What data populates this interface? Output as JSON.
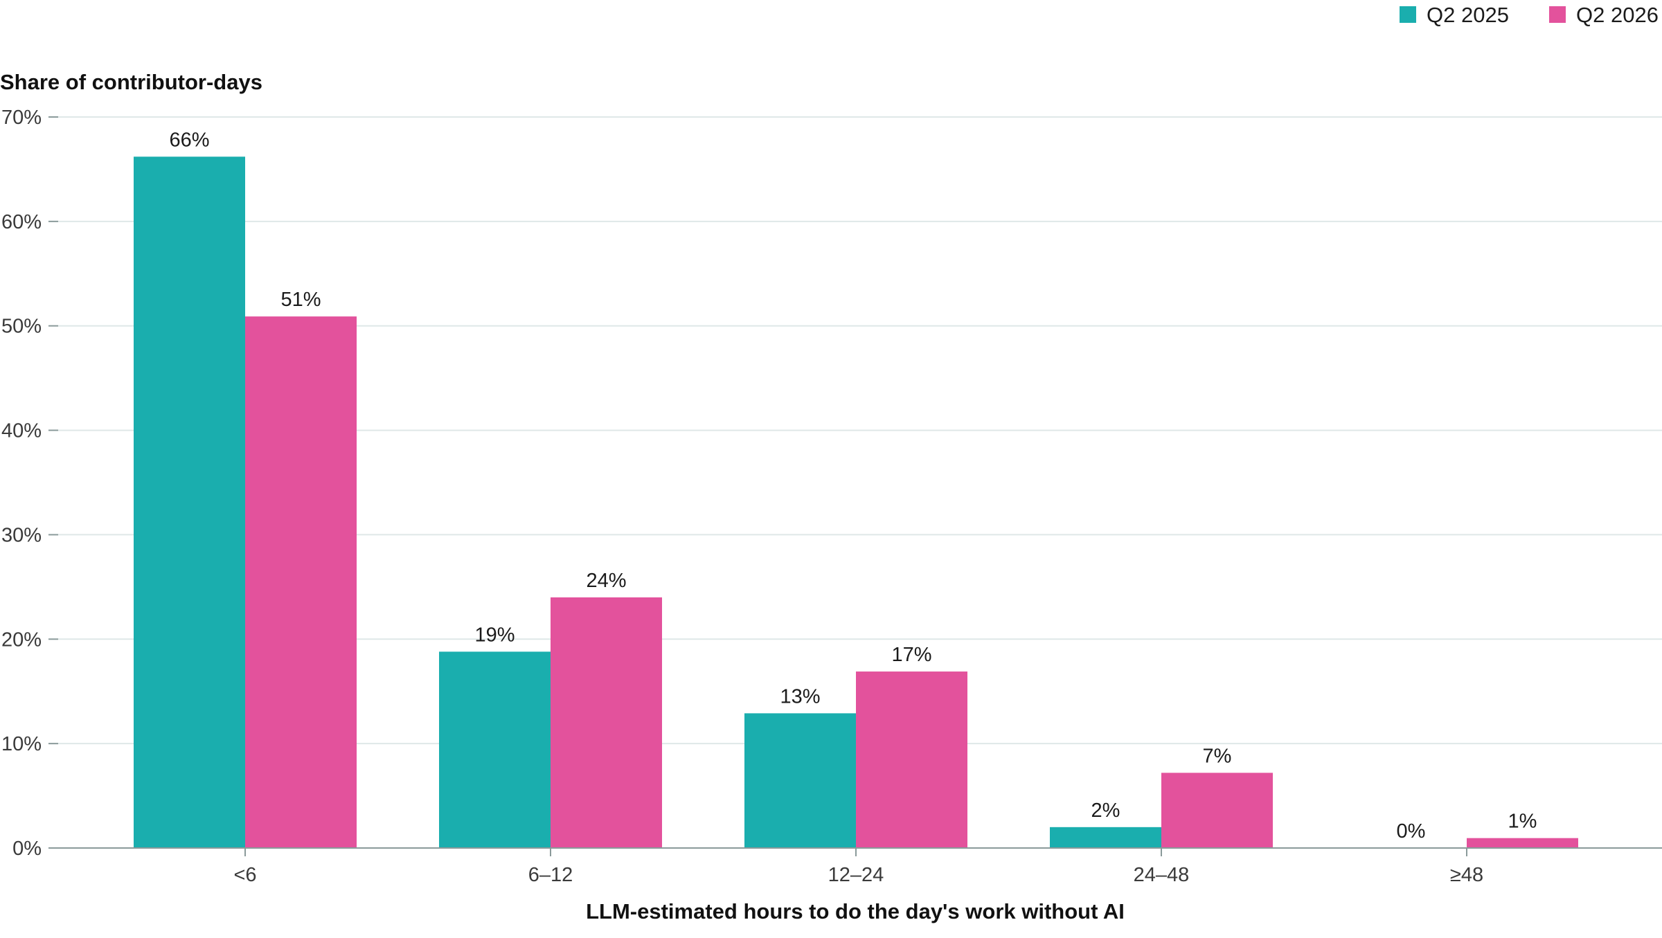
{
  "chart_data": {
    "type": "bar",
    "title": "",
    "ylabel": "Share of contributor-days",
    "xlabel": "LLM-estimated hours to do the day's work without AI",
    "categories": [
      "<6",
      "6–12",
      "12–24",
      "24–48",
      "≥48"
    ],
    "series": [
      {
        "name": "Q2 2025",
        "color": "#1aaeae",
        "values": [
          66.2,
          18.8,
          12.9,
          2.0,
          0.0
        ],
        "labels": [
          "66%",
          "19%",
          "13%",
          "2%",
          "0%"
        ]
      },
      {
        "name": "Q2 2026",
        "color": "#e3529c",
        "values": [
          50.9,
          24.0,
          16.9,
          7.2,
          0.95
        ],
        "labels": [
          "51%",
          "24%",
          "17%",
          "7%",
          "1%"
        ]
      }
    ],
    "ylim": [
      0,
      70
    ],
    "yticks": [
      0,
      10,
      20,
      30,
      40,
      50,
      60,
      70
    ],
    "ytick_labels": [
      "0%",
      "10%",
      "20%",
      "30%",
      "40%",
      "50%",
      "60%",
      "70%"
    ],
    "grid": true,
    "legend_position": "top-right",
    "colors": {
      "grid": "#dfe8e8",
      "axis": "#8a9a9a"
    }
  }
}
